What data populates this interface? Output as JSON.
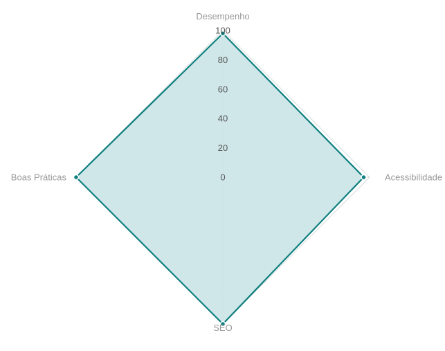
{
  "chart_data": {
    "type": "radar",
    "categories": [
      "Desempenho",
      "Acessibilidade",
      "SEO",
      "Boas Práticas"
    ],
    "series": [
      {
        "values": [
          98,
          96,
          100,
          100
        ]
      }
    ],
    "rlim": [
      0,
      100
    ],
    "ticks": [
      "0",
      "20",
      "40",
      "60",
      "80",
      "100"
    ],
    "grid": true,
    "legend": false
  },
  "colors": {
    "series_line": "#0f7f7f",
    "series_fill": "#cde6e8",
    "grid": "#d9dede",
    "axis_label": "#999999",
    "tick_label": "#555555",
    "point_stroke": "#ffffff"
  }
}
